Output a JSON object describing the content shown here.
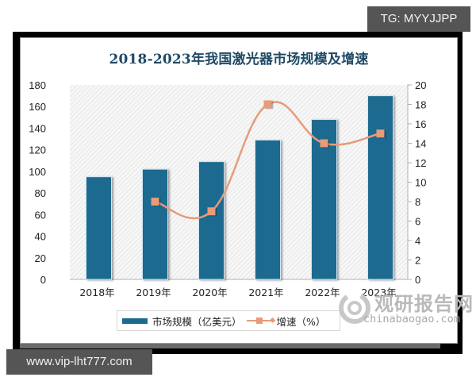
{
  "overlay": {
    "top_tag": "TG: MYYJJPP",
    "bottom_tag": "www.vip-lht777.com"
  },
  "watermark": {
    "cn": "观研报告网",
    "en": "chinabaogao.com"
  },
  "legend": {
    "bar_label": "市场规模（亿美元）",
    "line_label": "增速（%）"
  },
  "colors": {
    "bar": "#1c6a8f",
    "line": "#e89b78",
    "title": "#1f4a66"
  },
  "chart_data": {
    "type": "bar",
    "title": "2018-2023年我国激光器市场规模及增速",
    "categories": [
      "2018年",
      "2019年",
      "2020年",
      "2021年",
      "2022年",
      "2023年"
    ],
    "series": [
      {
        "name": "市场规模（亿美元）",
        "type": "bar",
        "axis": "left",
        "values": [
          95,
          102,
          109,
          129,
          148,
          170
        ]
      },
      {
        "name": "增速（%）",
        "type": "line",
        "axis": "right",
        "values": [
          null,
          8,
          7,
          18,
          14,
          15
        ]
      }
    ],
    "xlabel": "",
    "ylabel": "",
    "ylim": [
      0,
      180
    ],
    "y2lim": [
      0,
      20
    ],
    "yticks": [
      "0",
      "20",
      "40",
      "60",
      "80",
      "100",
      "120",
      "140",
      "160",
      "180"
    ],
    "y2ticks": [
      "0",
      "2",
      "4",
      "6",
      "8",
      "10",
      "12",
      "14",
      "16",
      "18",
      "20"
    ],
    "grid": false,
    "legend_position": "bottom"
  }
}
